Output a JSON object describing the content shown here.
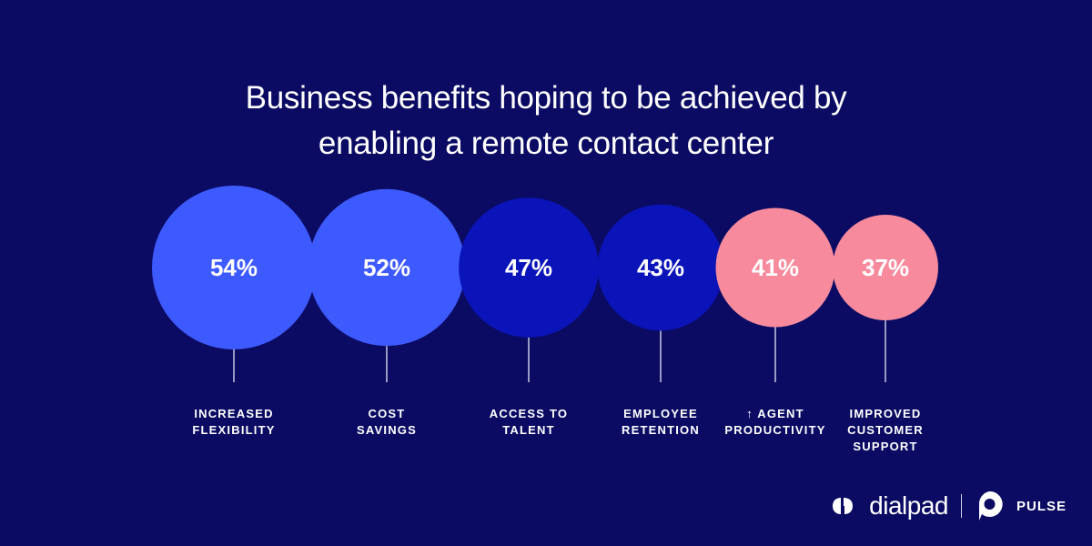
{
  "title_lines": [
    "Business benefits hoping to be achieved by",
    "enabling a remote contact center"
  ],
  "chart_data": {
    "type": "bubble",
    "title": "Business benefits hoping to be achieved by enabling a remote contact center",
    "unit": "%",
    "categories": [
      {
        "lines": [
          "INCREASED",
          "FLEXIBILITY"
        ],
        "value": 54,
        "label": "54%",
        "color": "#3d5afe"
      },
      {
        "lines": [
          "COST",
          "SAVINGS"
        ],
        "value": 52,
        "label": "52%",
        "color": "#3d5afe"
      },
      {
        "lines": [
          "ACCESS TO",
          "TALENT"
        ],
        "value": 47,
        "label": "47%",
        "color": "#0a14b8"
      },
      {
        "lines": [
          "EMPLOYEE",
          "RETENTION"
        ],
        "value": 43,
        "label": "43%",
        "color": "#0a14b8"
      },
      {
        "lines": [
          "↑ AGENT",
          "PRODUCTIVITY"
        ],
        "value": 41,
        "label": "41%",
        "color": "#f78a9c"
      },
      {
        "lines": [
          "IMPROVED",
          "CUSTOMER",
          "SUPPORT"
        ],
        "value": 37,
        "label": "37%",
        "color": "#f78a9c"
      }
    ]
  },
  "brand": {
    "dialpad": "dialpad",
    "separator": "|",
    "pulse": "PULSE",
    "logo_icon": "dialpad-logo-icon",
    "pulse_icon": "pulse-logo-icon"
  },
  "colors": {
    "background": "#0b0b63",
    "text": "#ffffff",
    "stem": "#c7c9e6"
  }
}
